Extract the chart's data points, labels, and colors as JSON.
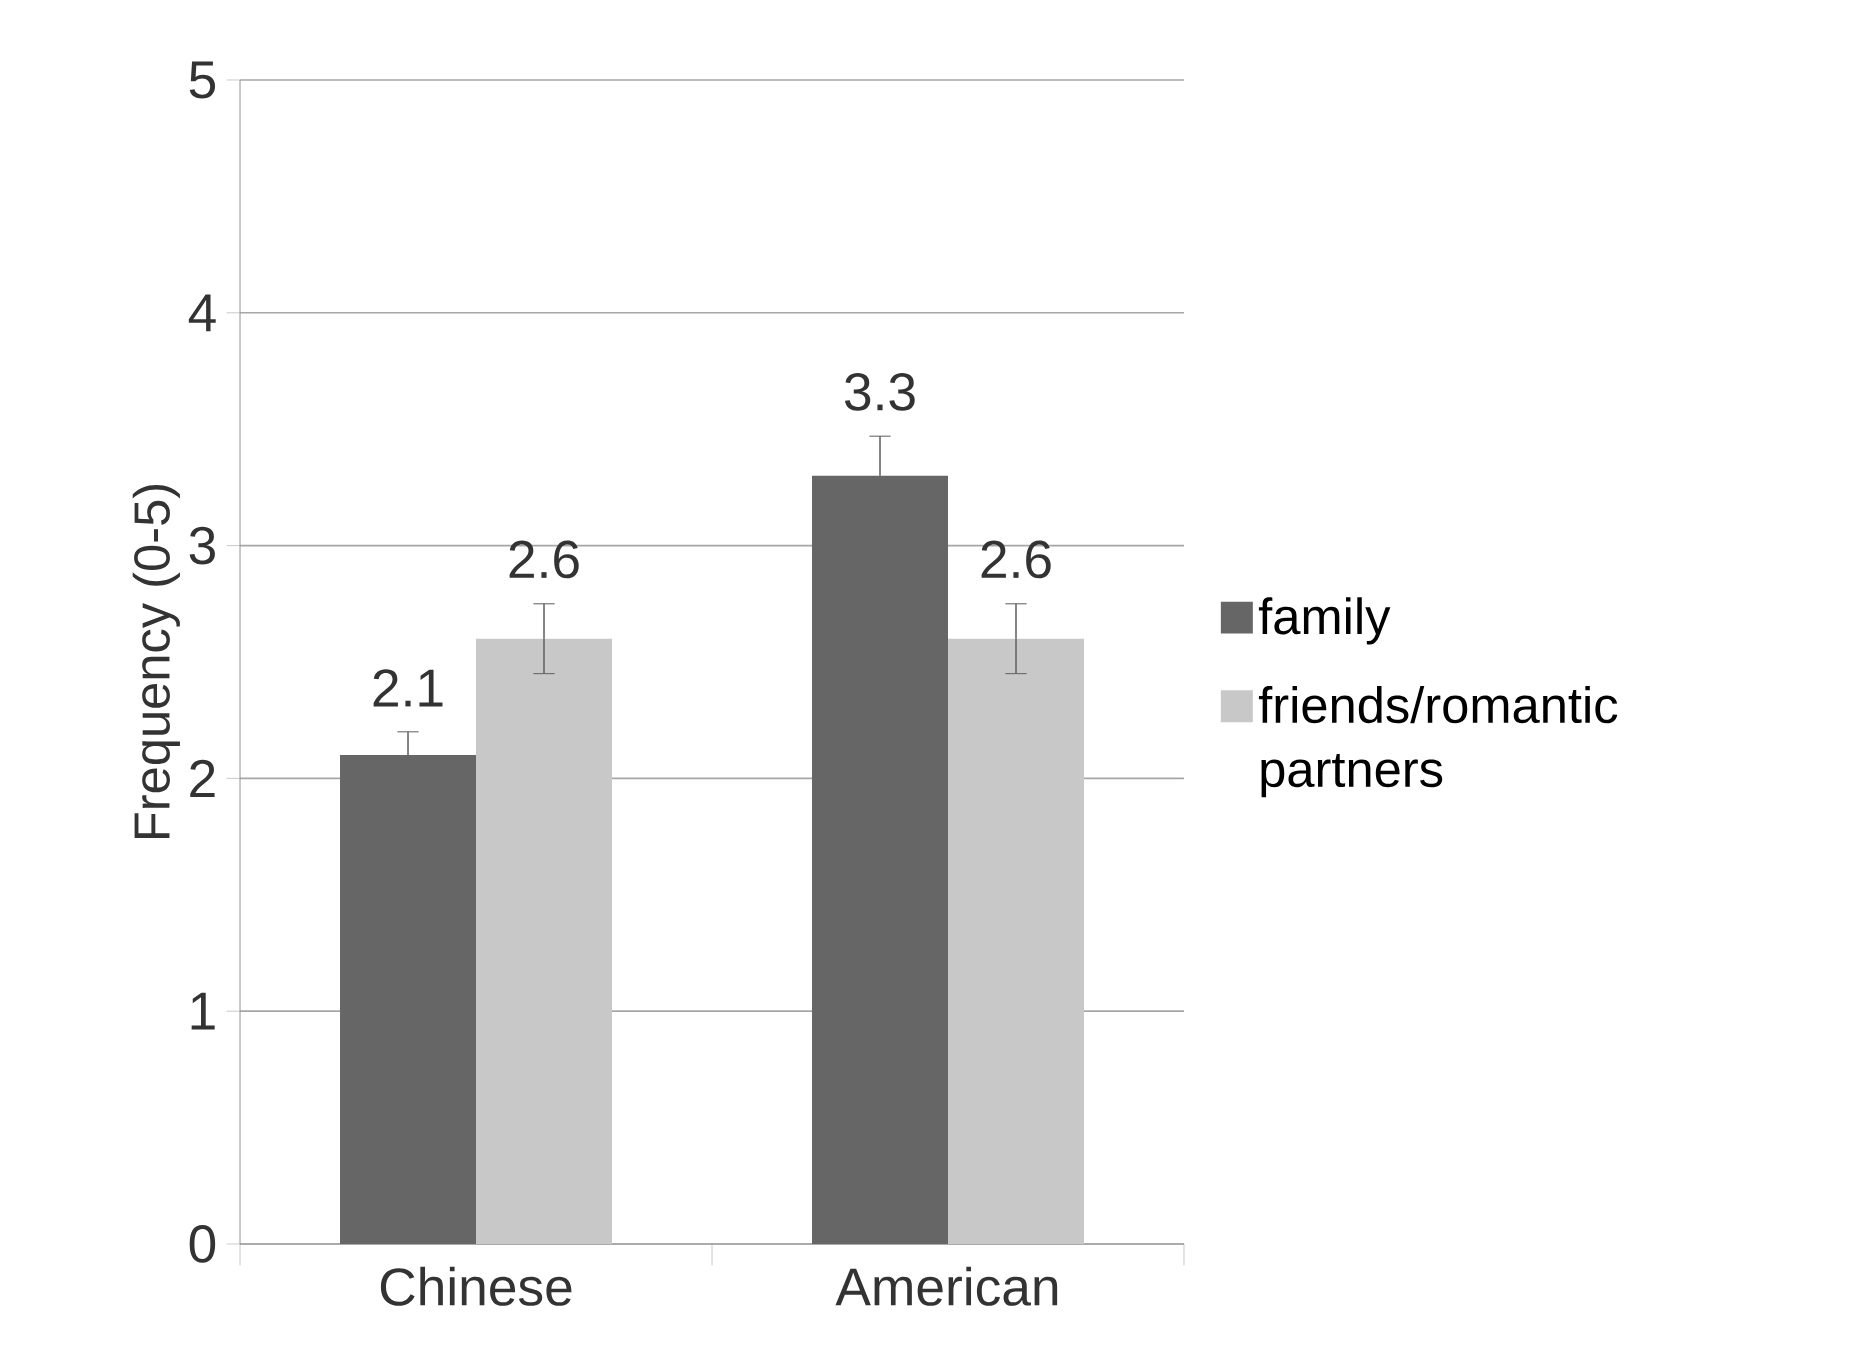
{
  "chart_data": {
    "type": "bar",
    "ylabel": "Frequency (0-5)",
    "categories": [
      "Chinese",
      "American"
    ],
    "series": [
      {
        "name": "family",
        "color": "#666666",
        "values": [
          2.1,
          3.3
        ],
        "errors": [
          0.1,
          0.17
        ]
      },
      {
        "name": "friends/romantic partners",
        "color": "#c8c8c8",
        "values": [
          2.6,
          2.6
        ],
        "errors": [
          0.15,
          0.15
        ]
      }
    ],
    "ylim": [
      0,
      5
    ],
    "yticks": [
      0,
      1,
      2,
      3,
      4,
      5
    ],
    "grid": "y",
    "legend": "right",
    "data_labels": true
  }
}
